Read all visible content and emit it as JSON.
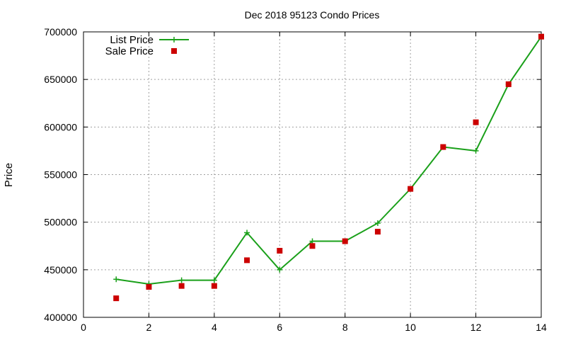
{
  "chart_data": {
    "type": "line",
    "title": "Dec 2018 95123 Condo Prices",
    "xlabel": "",
    "ylabel": "Price",
    "xlim": [
      0,
      14
    ],
    "ylim": [
      400000,
      700000
    ],
    "xticks": [
      0,
      2,
      4,
      6,
      8,
      10,
      12,
      14
    ],
    "yticks": [
      400000,
      450000,
      500000,
      550000,
      600000,
      650000,
      700000
    ],
    "grid": true,
    "legend_position": "top-left",
    "series": [
      {
        "name": "List Price",
        "style": "line-plus",
        "color": "#1aa01a",
        "x": [
          1,
          2,
          3,
          4,
          5,
          6,
          7,
          8,
          9,
          10,
          11,
          12,
          13,
          14
        ],
        "y": [
          440000,
          435000,
          439000,
          439000,
          489000,
          450000,
          480000,
          480000,
          499000,
          535000,
          579000,
          575000,
          645000,
          695000
        ]
      },
      {
        "name": "Sale Price",
        "style": "square-marker",
        "color": "#cc0000",
        "x": [
          1,
          2,
          3,
          4,
          5,
          6,
          7,
          8,
          9,
          10,
          11,
          12,
          13,
          14
        ],
        "y": [
          420000,
          432000,
          433000,
          433000,
          460000,
          470000,
          475000,
          480000,
          490000,
          535000,
          579000,
          605000,
          645000,
          695000
        ]
      }
    ]
  }
}
